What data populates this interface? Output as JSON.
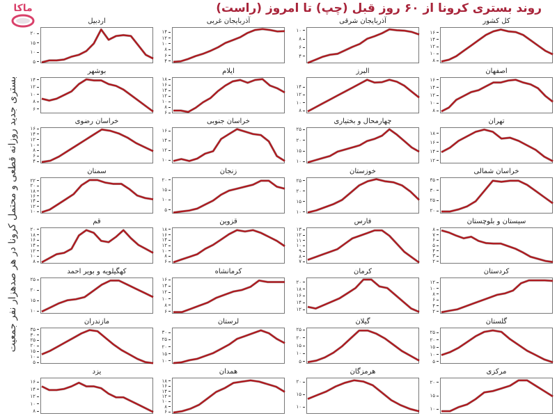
{
  "header": {
    "title": "روند بستری کرونا از ۶۰ روز قبل (چپ) تا امروز (راست)",
    "y_axis_label": "بستری جدید روزانه قطعی و محتمل کرونا در هر صدهزار نفر جمعیت",
    "logo_text": "ماکا"
  },
  "colors": {
    "line": "#b0141a",
    "title": "#a8243a",
    "logo": "#d9406a"
  },
  "chart_data": {
    "type": "line",
    "title": "روند بستری کرونا از ۶۰ روز قبل (چپ) تا امروز (راست)",
    "xlabel": "",
    "ylabel": "بستری جدید روزانه قطعی و محتمل کرونا در هر صدهزار نفر جمعیت",
    "x_range_days": [
      -60,
      0
    ],
    "panels": [
      {
        "name": "کل کشور",
        "ylim": [
          7.5,
          17.3
        ],
        "ticks": [
          8,
          10,
          12,
          14,
          16
        ],
        "values": [
          8,
          8.5,
          9.5,
          11,
          12.5,
          14,
          15.5,
          16.5,
          17,
          16.5,
          16.3,
          15.5,
          14,
          12.5,
          11,
          10
        ]
      },
      {
        "name": "آذربایجان شرقی",
        "ylim": [
          2.5,
          10.6
        ],
        "ticks": [
          4,
          6,
          8,
          10
        ],
        "values": [
          2.6,
          3.3,
          4,
          4.5,
          4.7,
          5.5,
          6.3,
          7,
          8.2,
          8.8,
          9.5,
          10.4,
          10.2,
          10.1,
          9.8,
          9.2
        ]
      },
      {
        "name": "آذربایجان غربی",
        "ylim": [
          3.5,
          15.5
        ],
        "ticks": [
          4,
          6,
          8,
          10,
          12,
          14
        ],
        "values": [
          4,
          4.2,
          5,
          6,
          6.8,
          7.8,
          9,
          10.5,
          11.5,
          12.5,
          14,
          15,
          15.3,
          15,
          14.5,
          14.6
        ]
      },
      {
        "name": "اردبیل",
        "ylim": [
          4.5,
          23
        ],
        "ticks": [
          5,
          10,
          15,
          20
        ],
        "values": [
          5,
          6,
          6,
          6.5,
          8,
          9,
          11,
          15,
          22.5,
          17,
          19,
          19.5,
          19,
          14,
          9,
          7
        ]
      },
      {
        "name": "اصفهان",
        "ylim": [
          7.5,
          16.5
        ],
        "ticks": [
          8,
          10,
          12,
          14,
          16
        ],
        "values": [
          8,
          9,
          11,
          12,
          13,
          13.5,
          14.5,
          15.5,
          15.5,
          16,
          16.2,
          15.5,
          15,
          14,
          12,
          10.5
        ]
      },
      {
        "name": "البرز",
        "ylim": [
          7.5,
          16.3
        ],
        "ticks": [
          8,
          10,
          12,
          14
        ],
        "values": [
          8,
          9,
          10,
          11,
          12,
          13,
          14,
          15,
          16,
          15.3,
          15.4,
          16,
          15.5,
          14.5,
          13,
          11.5
        ]
      },
      {
        "name": "ایلام",
        "ylim": [
          6,
          18.5
        ],
        "ticks": [
          6,
          8,
          10,
          12,
          14,
          16,
          18
        ],
        "values": [
          7,
          7,
          6.5,
          8,
          10,
          11.5,
          14,
          16,
          17.5,
          18,
          17,
          18,
          18.3,
          16,
          15,
          13.5
        ]
      },
      {
        "name": "بوشهر",
        "ylim": [
          5,
          14.5
        ],
        "ticks": [
          6,
          8,
          10,
          12,
          14
        ],
        "values": [
          9,
          8.5,
          9,
          10,
          11,
          13,
          14.3,
          14,
          14,
          13,
          12.5,
          11.5,
          10,
          8.5,
          7,
          5.5
        ]
      },
      {
        "name": "تهران",
        "ylim": [
          11.5,
          19.2
        ],
        "ticks": [
          12,
          14,
          16,
          18
        ],
        "values": [
          14,
          15,
          16.5,
          17.5,
          18.5,
          19,
          18.5,
          17,
          17.2,
          16.5,
          15.5,
          14.5,
          13,
          12
        ]
      },
      {
        "name": "چهارمحال و بختیاری",
        "ylim": [
          9.5,
          25.8
        ],
        "ticks": [
          10,
          15,
          20,
          25
        ],
        "values": [
          10,
          11,
          12,
          13,
          15,
          16,
          17,
          18,
          20,
          21,
          22.5,
          25.5,
          23,
          20,
          17,
          15
        ]
      },
      {
        "name": "خراسان جنوبی",
        "ylim": [
          9.5,
          16.6
        ],
        "ticks": [
          10,
          12,
          14,
          16
        ],
        "values": [
          10,
          10.4,
          10,
          10.5,
          11.5,
          12,
          14.5,
          15.5,
          16.5,
          16,
          15.5,
          15.3,
          14,
          11,
          10
        ]
      },
      {
        "name": "خراسان رضوی",
        "ylim": [
          3.5,
          16.3
        ],
        "ticks": [
          4,
          6,
          8,
          10,
          12,
          14,
          16
        ],
        "values": [
          4,
          4.5,
          6,
          8,
          10,
          12,
          14,
          16,
          15.5,
          14.5,
          13,
          11,
          9.5,
          8
        ]
      },
      {
        "name": "خراسان شمالی",
        "ylim": [
          19,
          36
        ],
        "ticks": [
          20,
          25,
          30,
          35
        ],
        "values": [
          20,
          20,
          21,
          22.5,
          25,
          30,
          35,
          34.5,
          35,
          35,
          33,
          30,
          27,
          24
        ]
      },
      {
        "name": "خوزستان",
        "ylim": [
          9.5,
          26.2
        ],
        "ticks": [
          10,
          15,
          20,
          25
        ],
        "values": [
          10,
          11,
          12.5,
          14,
          16,
          19.5,
          23,
          25,
          26,
          25,
          24.5,
          23,
          20,
          16
        ]
      },
      {
        "name": "زنجان",
        "ylim": [
          3.5,
          21
        ],
        "ticks": [
          5,
          10,
          15,
          20
        ],
        "values": [
          4,
          4.5,
          5,
          6,
          8,
          10,
          13,
          15,
          16,
          17,
          18,
          20,
          20,
          17,
          16
        ]
      },
      {
        "name": "سمنان",
        "ylim": [
          9.5,
          23
        ],
        "ticks": [
          10,
          12,
          14,
          16,
          18,
          20,
          22
        ],
        "values": [
          10,
          11,
          13,
          15,
          17,
          20.5,
          22.5,
          22.5,
          21.5,
          21,
          21,
          19,
          16.5,
          15.5,
          15
        ]
      },
      {
        "name": "سیستان و بلوچستان",
        "ylim": [
          1.7,
          8.3
        ],
        "ticks": [
          2,
          3,
          4,
          5,
          6,
          7,
          8
        ],
        "values": [
          8,
          7.6,
          7,
          6.5,
          6.8,
          6,
          5.6,
          5.5,
          5.5,
          5,
          4.5,
          3.8,
          3,
          2.6,
          2.2,
          2
        ]
      },
      {
        "name": "فارس",
        "ylim": [
          6.8,
          13.3
        ],
        "ticks": [
          7,
          8,
          9,
          10,
          11,
          12,
          13
        ],
        "values": [
          7.5,
          8,
          8.5,
          9,
          9.5,
          10.5,
          11.5,
          12,
          12.5,
          13,
          13,
          12,
          10.5,
          9,
          8,
          7
        ]
      },
      {
        "name": "قزوین",
        "ylim": [
          5.5,
          18.5
        ],
        "ticks": [
          6,
          8,
          10,
          12,
          14,
          16,
          18
        ],
        "values": [
          6,
          7,
          8,
          9,
          11,
          12.5,
          14.5,
          16.5,
          18,
          17.5,
          18,
          17,
          15.5,
          14,
          12
        ]
      },
      {
        "name": "قم",
        "ylim": [
          7.5,
          20.5
        ],
        "ticks": [
          8,
          10,
          12,
          14,
          16,
          18,
          20
        ],
        "values": [
          8,
          9.5,
          11,
          11.5,
          13,
          18,
          20,
          19,
          16,
          15.5,
          17.5,
          20,
          17,
          14.5,
          13,
          11.5
        ]
      },
      {
        "name": "کردستان",
        "ylim": [
          1.5,
          13.5
        ],
        "ticks": [
          2,
          4,
          6,
          8,
          10,
          12
        ],
        "values": [
          2,
          2.5,
          3,
          4,
          5,
          6,
          7,
          8,
          8.5,
          9.5,
          12,
          13,
          13,
          13,
          12.8
        ]
      },
      {
        "name": "کرمان",
        "ylim": [
          11,
          21.2
        ],
        "ticks": [
          12,
          14,
          16,
          18,
          20
        ],
        "values": [
          13,
          12.5,
          13.5,
          14.5,
          15.5,
          17,
          18.5,
          21,
          21,
          19,
          18.5,
          16.5,
          14.5,
          12.5,
          11.5
        ]
      },
      {
        "name": "کرمانشاه",
        "ylim": [
          5.5,
          16.5
        ],
        "ticks": [
          6,
          8,
          10,
          12,
          14,
          16
        ],
        "values": [
          6,
          6,
          7,
          8,
          9,
          10.5,
          11.5,
          12.5,
          13,
          14,
          16,
          15.5,
          15.5,
          15.5
        ]
      },
      {
        "name": "کهگیلویه و بویر احمد",
        "ylim": [
          9,
          25.8
        ],
        "ticks": [
          10,
          15,
          20,
          25
        ],
        "values": [
          10,
          12,
          14,
          15.5,
          16,
          17,
          20,
          23,
          25,
          25,
          23,
          21,
          19,
          17
        ]
      },
      {
        "name": "گلستان",
        "ylim": [
          4,
          28
        ],
        "ticks": [
          5,
          10,
          15,
          20,
          25
        ],
        "values": [
          10,
          12,
          15,
          19,
          23,
          26,
          27,
          26,
          21,
          17,
          13,
          10,
          7,
          5
        ]
      },
      {
        "name": "گیلان",
        "ylim": [
          4,
          26
        ],
        "ticks": [
          5,
          10,
          15,
          20,
          25
        ],
        "values": [
          5,
          6,
          8,
          11,
          15,
          20,
          25,
          25,
          23,
          20,
          16,
          12,
          9,
          6
        ]
      },
      {
        "name": "لرستان",
        "ylim": [
          8.5,
          33
        ],
        "ticks": [
          10,
          15,
          20,
          25,
          30
        ],
        "values": [
          9,
          9.5,
          11,
          12,
          14,
          16,
          19,
          22,
          26,
          28,
          30,
          32,
          30,
          26,
          23
        ]
      },
      {
        "name": "مازندران",
        "ylim": [
          4.5,
          36
        ],
        "ticks": [
          5,
          10,
          15,
          20,
          25,
          30,
          35
        ],
        "values": [
          13,
          16,
          20,
          24,
          28,
          32,
          35,
          34,
          28,
          22,
          17,
          13,
          9,
          6,
          5
        ]
      },
      {
        "name": "مرکزی",
        "ylim": [
          8.5,
          21.5
        ],
        "ticks": [
          10,
          15,
          20
        ],
        "values": [
          9.5,
          9.5,
          11,
          12,
          14,
          16.5,
          17,
          18,
          19,
          21,
          21,
          19,
          17,
          15
        ]
      },
      {
        "name": "هرمزگان",
        "ylim": [
          7.5,
          21.5
        ],
        "ticks": [
          10,
          15,
          20
        ],
        "values": [
          13.5,
          15,
          16.5,
          18.5,
          20,
          21,
          20.5,
          19,
          16,
          13,
          11,
          9.5,
          8.5
        ]
      },
      {
        "name": "همدان",
        "ylim": [
          5.5,
          19
        ],
        "ticks": [
          6,
          8,
          10,
          12,
          14,
          16,
          18
        ],
        "values": [
          6,
          6.5,
          7.5,
          9,
          11.5,
          14,
          15.5,
          17.5,
          18,
          18.5,
          18,
          17,
          16,
          14
        ]
      },
      {
        "name": "یزد",
        "ylim": [
          7.5,
          17
        ],
        "ticks": [
          8,
          10,
          12,
          14,
          16
        ],
        "values": [
          15,
          14,
          14,
          14.3,
          15,
          16,
          15,
          15,
          14.5,
          13,
          12,
          12,
          11,
          10,
          9,
          8
        ]
      }
    ]
  }
}
